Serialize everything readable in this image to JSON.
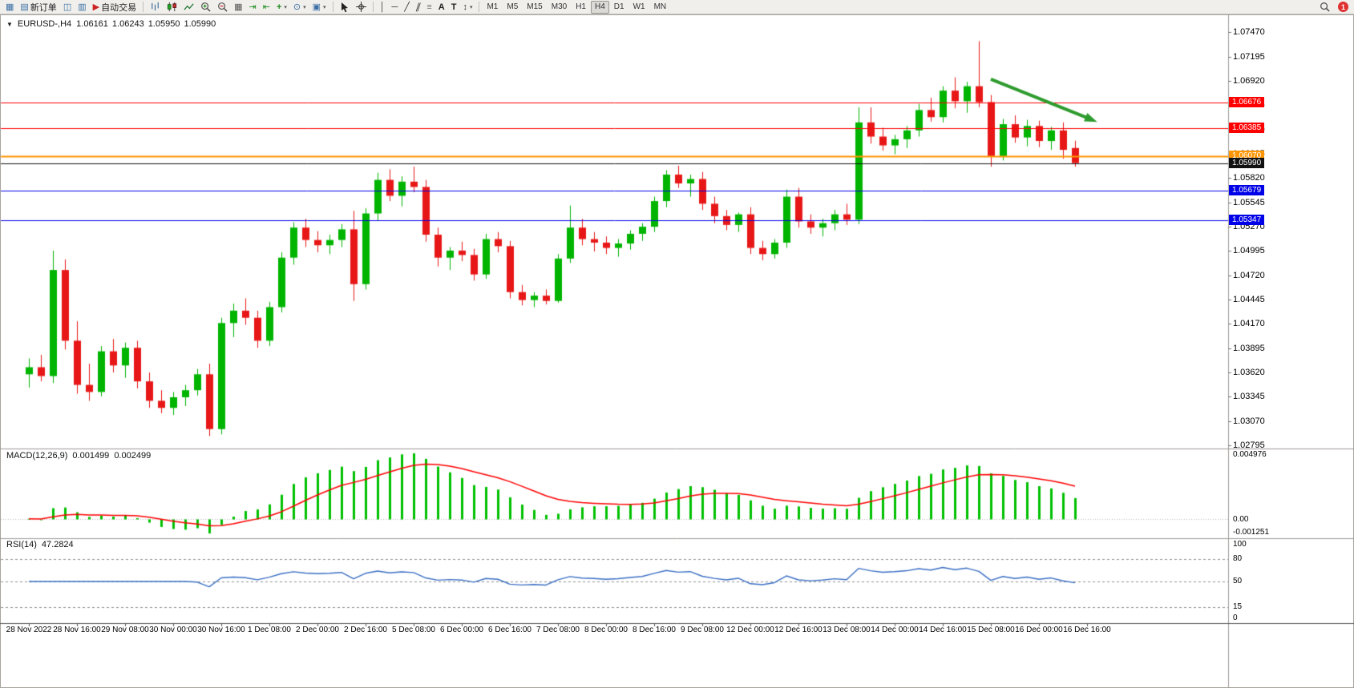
{
  "app": {
    "toolbar": {
      "groups": [
        {
          "items": [
            {
              "name": "new-chart",
              "icon": "chart-plus-icon"
            },
            {
              "name": "new-order",
              "icon": "order-form-icon",
              "label": "新订单"
            },
            {
              "name": "profiles",
              "icon": "profiles-icon"
            },
            {
              "name": "data-window",
              "icon": "data-window-icon"
            },
            {
              "name": "auto-trading",
              "icon": "autotrading-icon",
              "label": "自动交易"
            }
          ]
        },
        {
          "items": [
            {
              "name": "bar-chart-mode",
              "icon": "bars-mode-icon"
            },
            {
              "name": "candlestick-mode",
              "icon": "candles-mode-icon"
            },
            {
              "name": "line-chart-mode",
              "icon": "line-mode-icon"
            },
            {
              "name": "zoom-in",
              "icon": "zoom-in-icon"
            },
            {
              "name": "zoom-out",
              "icon": "zoom-out-icon"
            },
            {
              "name": "tile-windows",
              "icon": "tile-windows-icon"
            },
            {
              "name": "auto-scroll",
              "icon": "auto-scroll-icon"
            },
            {
              "name": "chart-shift",
              "icon": "chart-shift-icon"
            },
            {
              "name": "indicators",
              "icon": "indicators-icon",
              "dropdown": true
            },
            {
              "name": "periods",
              "icon": "periods-icon",
              "dropdown": true
            },
            {
              "name": "templates",
              "icon": "templates-icon",
              "dropdown": true
            }
          ]
        },
        {
          "items": [
            {
              "name": "cursor",
              "icon": "cursor-icon"
            },
            {
              "name": "crosshair",
              "icon": "crosshair-icon"
            }
          ]
        },
        {
          "items": [
            {
              "name": "vertical-line",
              "icon": "vline-icon"
            },
            {
              "name": "horizontal-line",
              "icon": "hline-icon"
            },
            {
              "name": "trendline",
              "icon": "trendline-icon"
            },
            {
              "name": "equidistant-channel",
              "icon": "channel-icon"
            },
            {
              "name": "fibonacci",
              "icon": "fibo-icon"
            },
            {
              "name": "text",
              "icon": "text-icon"
            },
            {
              "name": "text-label",
              "icon": "label-icon"
            },
            {
              "name": "arrows",
              "icon": "arrows-icon",
              "dropdown": true
            }
          ]
        }
      ],
      "timeframes": {
        "items": [
          "M1",
          "M5",
          "M15",
          "M30",
          "H1",
          "H4",
          "D1",
          "W1",
          "MN"
        ],
        "active": "H4"
      },
      "right": {
        "notification_count": "1"
      }
    }
  },
  "chart": {
    "symbol_period": "EURUSD-,H4",
    "ohlc": {
      "open": "1.06161",
      "high": "1.06243",
      "low": "1.05950",
      "close": "1.05990"
    }
  },
  "chart_data": {
    "type": "candlestick",
    "symbol": "EURUSD-",
    "timeframe": "H4",
    "bars_per_label": 4,
    "x_labels": [
      "28 Nov 2022",
      "28 Nov 16:00",
      "29 Nov 08:00",
      "30 Nov 00:00",
      "30 Nov 16:00",
      "1 Dec 08:00",
      "2 Dec 00:00",
      "2 Dec 16:00",
      "5 Dec 08:00",
      "6 Dec 00:00",
      "6 Dec 16:00",
      "7 Dec 08:00",
      "8 Dec 00:00",
      "8 Dec 16:00",
      "9 Dec 08:00",
      "12 Dec 00:00",
      "12 Dec 16:00",
      "13 Dec 08:00",
      "14 Dec 00:00",
      "14 Dec 16:00",
      "15 Dec 08:00",
      "16 Dec 00:00",
      "16 Dec 16:00"
    ],
    "price_axis": {
      "max": 1.076,
      "min": 1.0276,
      "ticks": [
        1.0747,
        1.07195,
        1.0692,
        1.06645,
        1.0637,
        1.06095,
        1.0582,
        1.05545,
        1.0527,
        1.04995,
        1.0472,
        1.04445,
        1.0417,
        1.03895,
        1.0362,
        1.03345,
        1.0307,
        1.02795
      ]
    },
    "candles": [
      [
        1.036,
        1.0378,
        1.0345,
        1.0368
      ],
      [
        1.0368,
        1.0382,
        1.0352,
        1.0358
      ],
      [
        1.0358,
        1.05,
        1.035,
        1.0478
      ],
      [
        1.0478,
        1.049,
        1.0388,
        1.0398
      ],
      [
        1.0398,
        1.042,
        1.0338,
        1.0348
      ],
      [
        1.0348,
        1.0372,
        1.033,
        1.034
      ],
      [
        1.034,
        1.0392,
        1.0335,
        1.0386
      ],
      [
        1.0386,
        1.04,
        1.0362,
        1.037
      ],
      [
        1.037,
        1.0396,
        1.0356,
        1.039
      ],
      [
        1.039,
        1.0398,
        1.0344,
        1.0352
      ],
      [
        1.0352,
        1.0362,
        1.0322,
        1.033
      ],
      [
        1.033,
        1.0342,
        1.0316,
        1.0322
      ],
      [
        1.0322,
        1.034,
        1.0314,
        1.0334
      ],
      [
        1.0334,
        1.0348,
        1.0324,
        1.0342
      ],
      [
        1.0342,
        1.0366,
        1.0336,
        1.036
      ],
      [
        1.036,
        1.0372,
        1.029,
        1.0298
      ],
      [
        1.0298,
        1.0424,
        1.0292,
        1.0418
      ],
      [
        1.0418,
        1.044,
        1.0402,
        1.0432
      ],
      [
        1.0432,
        1.0446,
        1.0416,
        1.0424
      ],
      [
        1.0424,
        1.0432,
        1.039,
        1.0398
      ],
      [
        1.0398,
        1.0442,
        1.0392,
        1.0436
      ],
      [
        1.0436,
        1.0498,
        1.043,
        1.0492
      ],
      [
        1.0492,
        1.0532,
        1.0484,
        1.0526
      ],
      [
        1.0526,
        1.0536,
        1.0504,
        1.0512
      ],
      [
        1.0512,
        1.0522,
        1.0498,
        1.0506
      ],
      [
        1.0506,
        1.0518,
        1.0496,
        1.0512
      ],
      [
        1.0512,
        1.053,
        1.0504,
        1.0524
      ],
      [
        1.0524,
        1.0545,
        1.0443,
        1.0462
      ],
      [
        1.0462,
        1.0548,
        1.0456,
        1.0542
      ],
      [
        1.0542,
        1.0588,
        1.0534,
        1.058
      ],
      [
        1.058,
        1.0592,
        1.0556,
        1.0562
      ],
      [
        1.0562,
        1.0584,
        1.055,
        1.0578
      ],
      [
        1.0578,
        1.0595,
        1.0566,
        1.0572
      ],
      [
        1.0572,
        1.058,
        1.051,
        1.0518
      ],
      [
        1.0518,
        1.0526,
        1.0482,
        1.0492
      ],
      [
        1.0492,
        1.0504,
        1.0478,
        1.05
      ],
      [
        1.05,
        1.051,
        1.0488,
        1.0495
      ],
      [
        1.0495,
        1.0502,
        1.0466,
        1.0473
      ],
      [
        1.0473,
        1.0519,
        1.0468,
        1.0513
      ],
      [
        1.0513,
        1.0521,
        1.0498,
        1.0505
      ],
      [
        1.0505,
        1.0511,
        1.0446,
        1.0453
      ],
      [
        1.0453,
        1.0461,
        1.0438,
        1.0444
      ],
      [
        1.0444,
        1.0453,
        1.0436,
        1.0449
      ],
      [
        1.0449,
        1.0456,
        1.0439,
        1.0443
      ],
      [
        1.0443,
        1.0496,
        1.0441,
        1.0491
      ],
      [
        1.0491,
        1.0551,
        1.0486,
        1.0526
      ],
      [
        1.0526,
        1.0536,
        1.0506,
        1.0513
      ],
      [
        1.0513,
        1.0521,
        1.0499,
        1.0509
      ],
      [
        1.0509,
        1.0516,
        1.0496,
        1.0503
      ],
      [
        1.0503,
        1.0513,
        1.0493,
        1.0508
      ],
      [
        1.0508,
        1.0523,
        1.0501,
        1.0519
      ],
      [
        1.0519,
        1.0531,
        1.0511,
        1.0527
      ],
      [
        1.0527,
        1.0561,
        1.0521,
        1.0556
      ],
      [
        1.0556,
        1.0591,
        1.0549,
        1.0586
      ],
      [
        1.0586,
        1.0596,
        1.0571,
        1.0576
      ],
      [
        1.0576,
        1.0586,
        1.0561,
        1.0581
      ],
      [
        1.0581,
        1.0589,
        1.0546,
        1.0553
      ],
      [
        1.0553,
        1.0561,
        1.0531,
        1.0539
      ],
      [
        1.0539,
        1.0546,
        1.0523,
        1.0529
      ],
      [
        1.0529,
        1.0543,
        1.0521,
        1.0541
      ],
      [
        1.0541,
        1.0549,
        1.0496,
        1.0503
      ],
      [
        1.0503,
        1.0511,
        1.0489,
        1.0496
      ],
      [
        1.0496,
        1.0513,
        1.0491,
        1.0509
      ],
      [
        1.0509,
        1.0569,
        1.0503,
        1.0561
      ],
      [
        1.0561,
        1.0571,
        1.0526,
        1.0533
      ],
      [
        1.0533,
        1.0541,
        1.0519,
        1.0526
      ],
      [
        1.0526,
        1.0536,
        1.0516,
        1.0531
      ],
      [
        1.0531,
        1.0546,
        1.0523,
        1.0541
      ],
      [
        1.0541,
        1.0553,
        1.0529,
        1.0535
      ],
      [
        1.0535,
        1.0662,
        1.053,
        1.0645
      ],
      [
        1.0645,
        1.0662,
        1.0621,
        1.0629
      ],
      [
        1.0629,
        1.0639,
        1.0613,
        1.0619
      ],
      [
        1.0619,
        1.0631,
        1.0609,
        1.0626
      ],
      [
        1.0626,
        1.0641,
        1.0616,
        1.0636
      ],
      [
        1.0636,
        1.0666,
        1.0629,
        1.0659
      ],
      [
        1.0659,
        1.0673,
        1.0646,
        1.0651
      ],
      [
        1.0651,
        1.0686,
        1.0645,
        1.0681
      ],
      [
        1.0681,
        1.0696,
        1.0661,
        1.0669
      ],
      [
        1.0669,
        1.0691,
        1.0656,
        1.0686
      ],
      [
        1.0686,
        1.0737,
        1.0662,
        1.0668
      ],
      [
        1.0668,
        1.0676,
        1.0595,
        1.0607
      ],
      [
        1.0607,
        1.0649,
        1.0602,
        1.0643
      ],
      [
        1.0643,
        1.0653,
        1.0622,
        1.0628
      ],
      [
        1.0628,
        1.0648,
        1.0618,
        1.0641
      ],
      [
        1.0641,
        1.0647,
        1.0617,
        1.0624
      ],
      [
        1.0624,
        1.064,
        1.0614,
        1.0636
      ],
      [
        1.0636,
        1.0645,
        1.0604,
        1.0614
      ],
      [
        1.06161,
        1.06243,
        1.0595,
        1.0599
      ]
    ],
    "price_lines": [
      {
        "price": 1.06676,
        "label": "1.06676",
        "color": "#FF0000",
        "width": 1
      },
      {
        "price": 1.06385,
        "label": "1.06385",
        "color": "#FF0000",
        "width": 1
      },
      {
        "price": 1.0607,
        "label": "1.06070",
        "color": "#FF9500",
        "width": 2
      },
      {
        "price": 1.0599,
        "label": "1.05990",
        "color": "#111111",
        "width": 1
      },
      {
        "price": 1.05679,
        "label": "1.05679",
        "color": "#0000E8",
        "width": 1
      },
      {
        "price": 1.05347,
        "label": "1.05347",
        "color": "#0000E8",
        "width": 1
      }
    ],
    "indicators": {
      "macd": {
        "label": "MACD(12,26,9)",
        "value_main": "0.001499",
        "value_signal": "0.002499",
        "params": [
          12,
          26,
          9
        ],
        "axis": {
          "max": 0.004976,
          "min": -0.001251,
          "max_label": "0.004976",
          "zero_label": "0.00",
          "min_label": "-0.001251"
        },
        "histogram_color": "#00C000",
        "signal_color": "#FF0000"
      },
      "rsi": {
        "label": "RSI(14)",
        "value": "47.2824",
        "period": 14,
        "levels": [
          80,
          50,
          15
        ],
        "axis": [
          {
            "label": "100",
            "value": 100
          },
          {
            "label": "80",
            "value": 80
          },
          {
            "label": "50",
            "value": 50
          },
          {
            "label": "15",
            "value": 15
          },
          {
            "label": "0",
            "value": 0
          }
        ],
        "color": "#3B6FC4"
      }
    },
    "annotations": [
      {
        "type": "arrow",
        "from_bar": 80,
        "from_price": 1.0694,
        "to_bar": 88.6,
        "to_price": 1.0647,
        "color": "#2E9B2E",
        "width": 4
      }
    ],
    "colors": {
      "up": "#00B400",
      "down": "#E81717",
      "background": "#FFFFFF"
    }
  }
}
